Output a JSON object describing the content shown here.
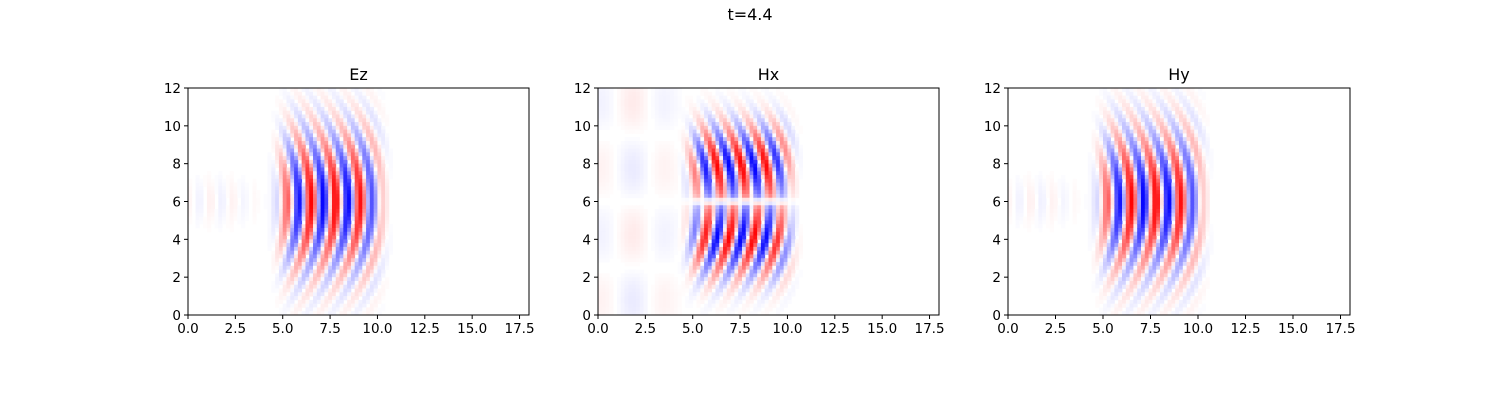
{
  "figure": {
    "suptitle": "t=4.4"
  },
  "colors": {
    "positive": "#ff0000",
    "negative": "#0000ff",
    "zero": "#ffffff"
  },
  "chart_data": [
    {
      "type": "heatmap",
      "title": "Ez",
      "colormap": "bwr",
      "xlim": [
        0,
        18
      ],
      "ylim": [
        0,
        12
      ],
      "xticks": [
        0.0,
        2.5,
        5.0,
        7.5,
        10.0,
        12.5,
        15.0,
        17.5
      ],
      "xtick_labels": [
        "0.0",
        "2.5",
        "5.0",
        "7.5",
        "10.0",
        "12.5",
        "15.0",
        "17.5"
      ],
      "yticks": [
        0,
        2,
        4,
        6,
        8,
        10,
        12
      ],
      "ytick_labels": [
        "0",
        "2",
        "4",
        "6",
        "8",
        "10",
        "12"
      ],
      "field": {
        "pattern": "pulse",
        "x_center": 7.5,
        "x_halfwidth": 2.6,
        "y_center": 6,
        "y_halfwidth": 3.4,
        "wavelength": 1.3,
        "curvature": 0.25
      }
    },
    {
      "type": "heatmap",
      "title": "Hx",
      "colormap": "bwr",
      "xlim": [
        0,
        18
      ],
      "ylim": [
        0,
        12
      ],
      "xticks": [
        0.0,
        2.5,
        5.0,
        7.5,
        10.0,
        12.5,
        15.0,
        17.5
      ],
      "xtick_labels": [
        "0.0",
        "2.5",
        "5.0",
        "7.5",
        "10.0",
        "12.5",
        "15.0",
        "17.5"
      ],
      "yticks": [
        0,
        2,
        4,
        6,
        8,
        10,
        12
      ],
      "ytick_labels": [
        "0",
        "2",
        "4",
        "6",
        "8",
        "10",
        "12"
      ],
      "field": {
        "pattern": "split-pulse",
        "x_center": 7.5,
        "x_halfwidth": 2.6,
        "y_center": 6,
        "y_halfwidth": 3.8,
        "wavelength": 1.3,
        "curvature": 0.25
      }
    },
    {
      "type": "heatmap",
      "title": "Hy",
      "colormap": "bwr",
      "xlim": [
        0,
        18
      ],
      "ylim": [
        0,
        12
      ],
      "xticks": [
        0.0,
        2.5,
        5.0,
        7.5,
        10.0,
        12.5,
        15.0,
        17.5
      ],
      "xtick_labels": [
        "0.0",
        "2.5",
        "5.0",
        "7.5",
        "10.0",
        "12.5",
        "15.0",
        "17.5"
      ],
      "yticks": [
        0,
        2,
        4,
        6,
        8,
        10,
        12
      ],
      "ytick_labels": [
        "0",
        "2",
        "4",
        "6",
        "8",
        "10",
        "12"
      ],
      "field": {
        "pattern": "pulse",
        "x_center": 7.5,
        "x_halfwidth": 2.6,
        "y_center": 6,
        "y_halfwidth": 3.4,
        "wavelength": 1.3,
        "curvature": 0.25
      }
    }
  ]
}
